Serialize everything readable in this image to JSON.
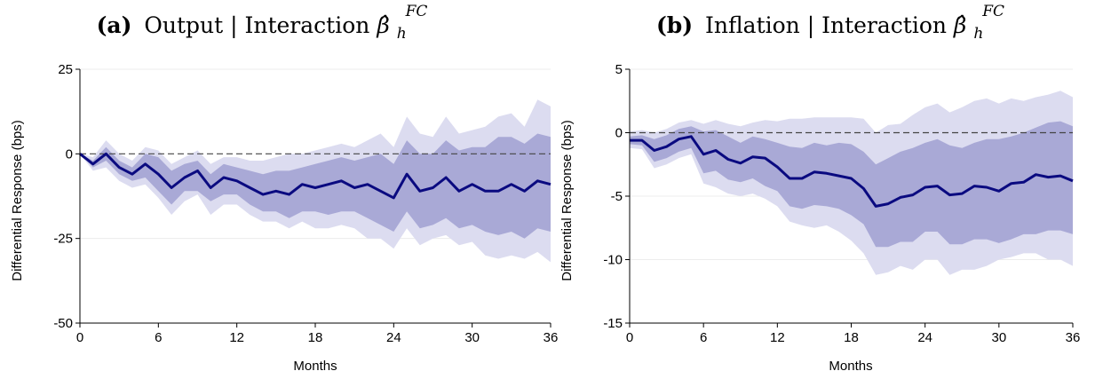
{
  "colors": {
    "outer_band": "#dcdcf0",
    "inner_band": "#a9a9d6",
    "line": "#0a0a80"
  },
  "chart_data": [
    {
      "type": "area",
      "panel_label": "(a)",
      "title_main": "Output | Interaction ",
      "title_beta": "β̂",
      "title_sub": "h",
      "title_sup": "FC",
      "xlabel": "Months",
      "ylabel": "Differential Response (bps)",
      "xlim": [
        0,
        36
      ],
      "ylim": [
        -50,
        25
      ],
      "xticks": [
        0,
        6,
        12,
        18,
        24,
        30,
        36
      ],
      "yticks": [
        -50,
        -25,
        0,
        25
      ],
      "reference_line": 0,
      "x": [
        0,
        1,
        2,
        3,
        4,
        5,
        6,
        7,
        8,
        9,
        10,
        11,
        12,
        13,
        14,
        15,
        16,
        17,
        18,
        19,
        20,
        21,
        22,
        23,
        24,
        25,
        26,
        27,
        28,
        29,
        30,
        31,
        32,
        33,
        34,
        35,
        36
      ],
      "series": [
        {
          "role": "outer_upper",
          "values": [
            0,
            -1,
            4,
            0,
            -2,
            2,
            1,
            -3,
            -1,
            1,
            -3,
            -1,
            -1,
            -2,
            -2,
            -1,
            0,
            0,
            1,
            2,
            3,
            2,
            4,
            6,
            2,
            11,
            6,
            5,
            11,
            6,
            7,
            8,
            11,
            12,
            8,
            16,
            14
          ]
        },
        {
          "role": "outer_lower",
          "values": [
            0,
            -5,
            -4,
            -8,
            -10,
            -9,
            -13,
            -18,
            -14,
            -12,
            -18,
            -15,
            -15,
            -18,
            -20,
            -20,
            -22,
            -20,
            -22,
            -22,
            -21,
            -22,
            -25,
            -25,
            -28,
            -22,
            -27,
            -25,
            -24,
            -27,
            -26,
            -30,
            -31,
            -30,
            -31,
            -29,
            -32
          ]
        },
        {
          "role": "inner_upper",
          "values": [
            0,
            -2,
            2,
            -2,
            -4,
            0,
            -1,
            -5,
            -3,
            -2,
            -6,
            -3,
            -4,
            -5,
            -6,
            -5,
            -5,
            -4,
            -3,
            -2,
            -1,
            -2,
            -1,
            0,
            -3,
            4,
            0,
            0,
            4,
            1,
            2,
            2,
            5,
            5,
            3,
            6,
            5
          ]
        },
        {
          "role": "inner_lower",
          "values": [
            0,
            -4,
            -2,
            -6,
            -8,
            -7,
            -11,
            -15,
            -11,
            -11,
            -14,
            -12,
            -12,
            -15,
            -17,
            -17,
            -19,
            -17,
            -17,
            -18,
            -17,
            -17,
            -19,
            -21,
            -23,
            -17,
            -22,
            -21,
            -19,
            -22,
            -21,
            -23,
            -24,
            -23,
            -25,
            -22,
            -23
          ]
        },
        {
          "role": "estimate",
          "values": [
            0,
            -3,
            0,
            -4,
            -6,
            -3,
            -6,
            -10,
            -7,
            -5,
            -10,
            -7,
            -8,
            -10,
            -12,
            -11,
            -12,
            -9,
            -10,
            -9,
            -8,
            -10,
            -9,
            -11,
            -13,
            -6,
            -11,
            -10,
            -7,
            -11,
            -9,
            -11,
            -11,
            -9,
            -11,
            -8,
            -9
          ]
        }
      ]
    },
    {
      "type": "area",
      "panel_label": "(b)",
      "title_main": "Inflation | Interaction ",
      "title_beta": "β̂",
      "title_sub": "h",
      "title_sup": "FC",
      "xlabel": "Months",
      "ylabel": "Differential Response (bps)",
      "xlim": [
        0,
        36
      ],
      "ylim": [
        -15,
        5
      ],
      "xticks": [
        0,
        6,
        12,
        18,
        24,
        30,
        36
      ],
      "yticks": [
        -15,
        -10,
        -5,
        0,
        5
      ],
      "reference_line": 0,
      "x": [
        0,
        1,
        2,
        3,
        4,
        5,
        6,
        7,
        8,
        9,
        10,
        11,
        12,
        13,
        14,
        15,
        16,
        17,
        18,
        19,
        20,
        21,
        22,
        23,
        24,
        25,
        26,
        27,
        28,
        29,
        30,
        31,
        32,
        33,
        34,
        35,
        36
      ],
      "series": [
        {
          "role": "outer_upper",
          "values": [
            0.1,
            0.2,
            0,
            0.3,
            0.8,
            1.0,
            0.7,
            1.0,
            0.7,
            0.5,
            0.8,
            1.0,
            0.9,
            1.1,
            1.1,
            1.2,
            1.2,
            1.2,
            1.2,
            1.1,
            0,
            0.6,
            0.7,
            1.4,
            2.0,
            2.3,
            1.6,
            2.0,
            2.5,
            2.7,
            2.3,
            2.7,
            2.5,
            2.8,
            3.0,
            3.3,
            2.8
          ]
        },
        {
          "role": "outer_lower",
          "values": [
            -1.2,
            -1.3,
            -2.8,
            -2.5,
            -2.0,
            -1.7,
            -4.0,
            -4.3,
            -4.8,
            -5.0,
            -4.8,
            -5.2,
            -5.8,
            -7.0,
            -7.3,
            -7.5,
            -7.3,
            -7.8,
            -8.5,
            -9.5,
            -11.2,
            -11.0,
            -10.5,
            -10.8,
            -10.0,
            -10.0,
            -11.2,
            -10.8,
            -10.8,
            -10.5,
            -10.0,
            -9.8,
            -9.5,
            -9.5,
            -10.0,
            -10.0,
            -10.5
          ]
        },
        {
          "role": "inner_upper",
          "values": [
            -0.3,
            -0.2,
            -0.5,
            -0.2,
            0.3,
            0.5,
            0.1,
            0.2,
            -0.3,
            -0.8,
            -0.3,
            -0.5,
            -0.8,
            -1.1,
            -1.2,
            -0.8,
            -1.0,
            -0.8,
            -0.9,
            -1.5,
            -2.5,
            -2.0,
            -1.5,
            -1.2,
            -0.8,
            -0.5,
            -1.0,
            -1.2,
            -0.8,
            -0.5,
            -0.5,
            -0.3,
            0,
            0.4,
            0.8,
            0.9,
            0.5
          ]
        },
        {
          "role": "inner_lower",
          "values": [
            -0.9,
            -1.0,
            -2.3,
            -2.0,
            -1.5,
            -1.2,
            -3.2,
            -3.0,
            -3.7,
            -3.9,
            -3.6,
            -4.2,
            -4.6,
            -5.8,
            -6.0,
            -5.7,
            -5.8,
            -6.0,
            -6.5,
            -7.2,
            -9.0,
            -9.0,
            -8.6,
            -8.6,
            -7.8,
            -7.8,
            -8.8,
            -8.8,
            -8.4,
            -8.4,
            -8.7,
            -8.4,
            -8.0,
            -8.0,
            -7.7,
            -7.7,
            -8.0
          ]
        },
        {
          "role": "estimate",
          "values": [
            -0.6,
            -0.6,
            -1.4,
            -1.1,
            -0.5,
            -0.3,
            -1.7,
            -1.4,
            -2.1,
            -2.4,
            -1.9,
            -2.0,
            -2.7,
            -3.6,
            -3.6,
            -3.1,
            -3.2,
            -3.4,
            -3.6,
            -4.4,
            -5.8,
            -5.6,
            -5.1,
            -4.9,
            -4.3,
            -4.2,
            -4.9,
            -4.8,
            -4.2,
            -4.3,
            -4.6,
            -4.0,
            -3.9,
            -3.3,
            -3.5,
            -3.4,
            -3.8
          ]
        }
      ]
    }
  ]
}
